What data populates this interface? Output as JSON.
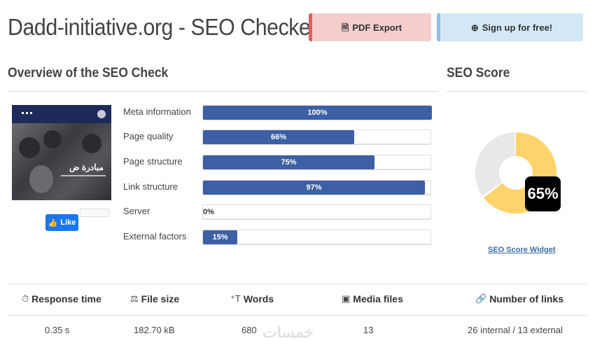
{
  "header": {
    "title": "Dadd-initiative.org - SEO Checker",
    "pdf_export_label": "PDF Export",
    "pdf_icon": "file-pdf-icon",
    "signup_label": "Sign up for free!",
    "signup_icon": "plus-circle-icon"
  },
  "overview": {
    "title": "Overview of the SEO Check",
    "thumbnail": {
      "arabic_text": "مبادرة ض"
    },
    "like_label": "Like",
    "metrics": [
      {
        "label": "Meta information",
        "percent": 100,
        "text": "100%"
      },
      {
        "label": "Page quality",
        "percent": 66,
        "text": "66%"
      },
      {
        "label": "Page structure",
        "percent": 75,
        "text": "75%"
      },
      {
        "label": "Link structure",
        "percent": 97,
        "text": "97%"
      },
      {
        "label": "Server",
        "percent": 0,
        "text": "0%"
      },
      {
        "label": "External factors",
        "percent": 15,
        "text": "15%"
      }
    ]
  },
  "score": {
    "title": "SEO Score",
    "value": 65,
    "text": "65%",
    "widget_link": "SEO Score Widget",
    "colors": {
      "filled": "#ffd36b",
      "empty": "#e8e8e8"
    }
  },
  "stats": [
    {
      "icon": "stopwatch-icon",
      "label": "Response time",
      "value": "0.35 s"
    },
    {
      "icon": "scale-icon",
      "label": "File size",
      "value": "182.70 kB"
    },
    {
      "icon": "text-height-icon",
      "label": "Words",
      "value": "680"
    },
    {
      "icon": "image-icon",
      "label": "Media files",
      "value": "13"
    },
    {
      "icon": "link-icon",
      "label": "Number of links",
      "value": "26 internal / 13 external"
    }
  ],
  "watermark": "خمسات",
  "colors": {
    "bar": "#3d5fa3",
    "pdf_accent": "#e06060",
    "signup_accent": "#8bbfe0",
    "facebook": "#1a77f2"
  }
}
